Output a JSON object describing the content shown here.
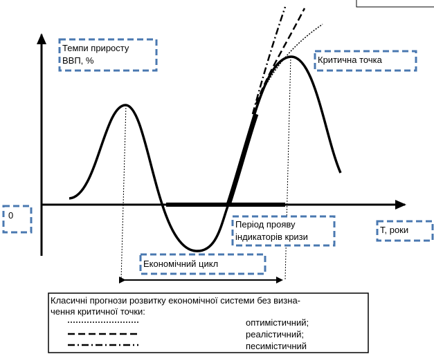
{
  "labels": {
    "y_axis": [
      "Темпи приросту",
      "ВВП, %"
    ],
    "critical_point": "Критична точка",
    "origin": "0",
    "crisis_period": [
      "Період прояву",
      "індикаторів кризи"
    ],
    "x_axis": "Т, роки",
    "cycle": "Економічний цикл"
  },
  "legend": {
    "title": [
      "Класичні прогнози розвитку економічної системи без визна-",
      "чення критичної точки:"
    ],
    "items": [
      "оптимістичний;",
      "реалістичний;",
      "песимістичний"
    ]
  }
}
